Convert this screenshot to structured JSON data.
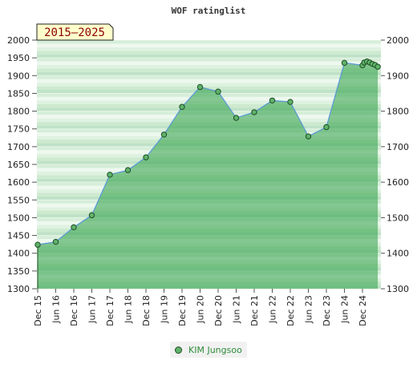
{
  "chart_data": {
    "type": "area",
    "title": "WOF ratinglist",
    "badge": "2015–2025",
    "xlabel": "",
    "ylabel": "",
    "ylim": [
      1300,
      2000
    ],
    "yticks": [
      1300,
      1350,
      1400,
      1450,
      1500,
      1550,
      1600,
      1650,
      1700,
      1750,
      1800,
      1850,
      1900,
      1950,
      2000
    ],
    "yticks_right": [
      1300,
      1400,
      1500,
      1600,
      1700,
      1800,
      1900,
      2000
    ],
    "xticks": [
      "Dec 15",
      "Jun 16",
      "Dec 16",
      "Jun 17",
      "Dec 17",
      "Jun 18",
      "Dec 18",
      "Jun 19",
      "Dec 19",
      "Jun 20",
      "Dec 20",
      "Jun 21",
      "Dec 21",
      "Jun 22",
      "Dec 22",
      "Jun 23",
      "Dec 23",
      "Jun 24",
      "Dec 24"
    ],
    "legend": "bottom-center",
    "series": [
      {
        "name": "KIM Jungsoo",
        "color": "#5fb36a",
        "line_color": "#5b9bd5",
        "values": [
          1424,
          1432,
          1473,
          1507,
          1621,
          1634,
          1670,
          1734,
          1812,
          1868,
          1855,
          1781,
          1797,
          1830,
          1826,
          1729,
          1755,
          1936,
          1929,
          1937,
          1940,
          1937,
          1933,
          1930,
          1925
        ],
        "x_pos": [
          0,
          1,
          2,
          3,
          4,
          5,
          6,
          7,
          8,
          9,
          10,
          11,
          12,
          13,
          14,
          15,
          16,
          17,
          18,
          18.1,
          18.25,
          18.4,
          18.55,
          18.7,
          18.85
        ]
      }
    ]
  }
}
